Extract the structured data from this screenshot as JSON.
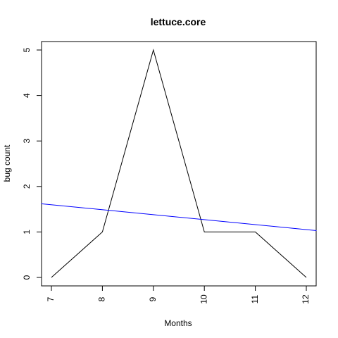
{
  "chart_data": {
    "type": "line",
    "title": "lettuce.core",
    "xlabel": "Months",
    "ylabel": "bug count",
    "xlim": [
      7,
      12
    ],
    "ylim": [
      0,
      5
    ],
    "x_ticks": [
      7,
      8,
      9,
      10,
      11,
      12
    ],
    "y_ticks": [
      0,
      1,
      2,
      3,
      4,
      5
    ],
    "x": [
      7,
      8,
      9,
      10,
      11,
      12
    ],
    "series": [
      {
        "values": [
          0,
          1,
          5,
          1,
          1,
          0
        ],
        "color": "#000000"
      }
    ],
    "trend_line": {
      "color": "#0000ff",
      "start": [
        6.8,
        1.62
      ],
      "end": [
        12.2,
        1.03
      ]
    },
    "grid": false,
    "legend": "none"
  }
}
